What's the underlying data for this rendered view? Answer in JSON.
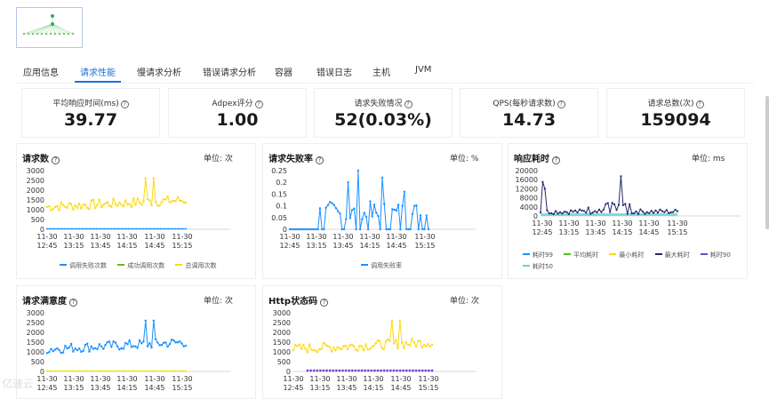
{
  "tabs": [
    "应用信息",
    "请求性能",
    "慢请求分析",
    "错误请求分析",
    "容器",
    "错误日志",
    "主机",
    "JVM"
  ],
  "active_tab": 1,
  "stats": [
    {
      "label": "平均响应时间(ms)",
      "value": "39.77"
    },
    {
      "label": "Adpex评分",
      "value": "1.00"
    },
    {
      "label": "请求失败情况",
      "value": "52(0.03%)"
    },
    {
      "label": "QPS(每秒请求数)",
      "value": "14.73"
    },
    {
      "label": "请求总数(次)",
      "value": "159094"
    }
  ],
  "help_icon": "?",
  "colors": {
    "blue": "#1890ff",
    "green": "#52c41a",
    "yellow": "#fadb14",
    "navy": "#1f2a6b",
    "purple": "#7a3fd1",
    "cyan": "#5fd3d8",
    "accent": "#1f6fe0"
  },
  "x_ticks": [
    [
      "11-30",
      "12:45"
    ],
    [
      "11-30",
      "13:15"
    ],
    [
      "11-30",
      "13:45"
    ],
    [
      "11-30",
      "14:15"
    ],
    [
      "11-30",
      "14:45"
    ],
    [
      "11-30",
      "15:15"
    ]
  ],
  "charts": {
    "requests": {
      "title": "请求数",
      "unit": "单位: 次",
      "y_ticks": [
        "3000",
        "2500",
        "2000",
        "1500",
        "1000",
        "500",
        "0"
      ],
      "legend": [
        {
          "name": "调用失败次数",
          "color": "#1890ff"
        },
        {
          "name": "成功调用次数",
          "color": "#52c41a"
        },
        {
          "name": "总调用次数",
          "color": "#fadb14"
        }
      ]
    },
    "failure_rate": {
      "title": "请求失败率",
      "unit": "单位: %",
      "y_ticks": [
        "0.25",
        "0.2",
        "0.15",
        "0.1",
        "0.05",
        "0"
      ],
      "legend": [
        {
          "name": "调用失败率",
          "color": "#1890ff"
        }
      ]
    },
    "latency": {
      "title": "响应耗时",
      "unit": "单位: ms",
      "y_ticks": [
        "20000",
        "16000",
        "12000",
        "8000",
        "4000",
        "0"
      ],
      "legend": [
        {
          "name": "耗时99",
          "color": "#1890ff"
        },
        {
          "name": "平均耗时",
          "color": "#52c41a"
        },
        {
          "name": "最小耗时",
          "color": "#fadb14"
        },
        {
          "name": "最大耗时",
          "color": "#1f2a6b"
        },
        {
          "name": "耗时90",
          "color": "#7a3fd1"
        },
        {
          "name": "耗时50",
          "color": "#5fd3d8"
        }
      ]
    },
    "satisfaction": {
      "title": "请求满意度",
      "unit": "单位: 次",
      "y_ticks": [
        "3000",
        "2500",
        "2000",
        "1500",
        "1000",
        "500",
        "0"
      ]
    },
    "http_status": {
      "title": "Http状态码",
      "unit": "单位: 次",
      "y_ticks": [
        "3000",
        "2500",
        "2000",
        "1500",
        "1000",
        "500",
        "0"
      ]
    }
  },
  "watermark": "亿速云"
}
